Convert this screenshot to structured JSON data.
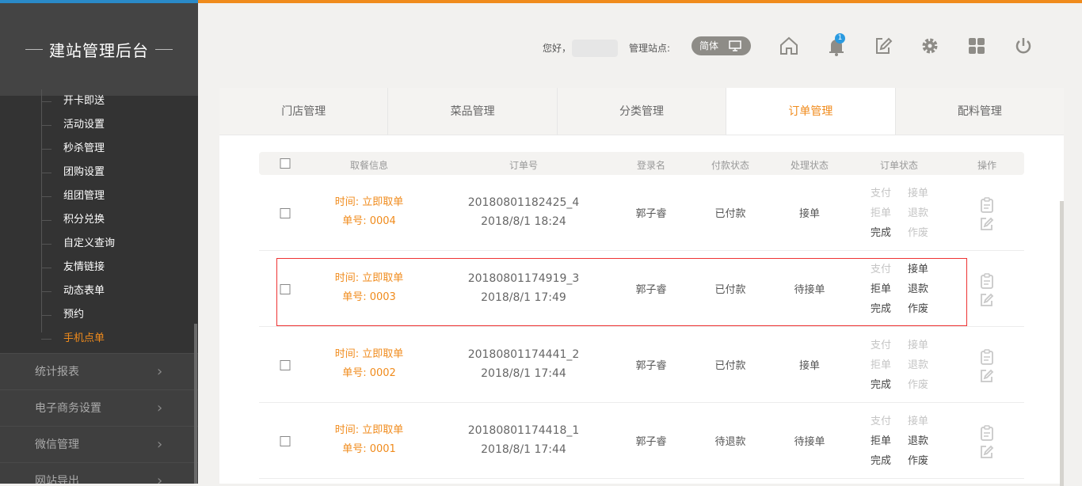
{
  "brand": {
    "title": "建站管理后台"
  },
  "sidebar": {
    "sub_items": [
      {
        "label": "开卡即送"
      },
      {
        "label": "活动设置"
      },
      {
        "label": "秒杀管理"
      },
      {
        "label": "团购设置"
      },
      {
        "label": "组团管理"
      },
      {
        "label": "积分兑换"
      },
      {
        "label": "自定义查询"
      },
      {
        "label": "友情链接"
      },
      {
        "label": "动态表单"
      },
      {
        "label": "预约"
      },
      {
        "label": "手机点单",
        "active": true
      }
    ],
    "menus": [
      {
        "label": "统计报表"
      },
      {
        "label": "电子商务设置"
      },
      {
        "label": "微信管理"
      },
      {
        "label": "网站导出"
      }
    ]
  },
  "header": {
    "greeting": "您好，",
    "site_label": "管理站点:",
    "lang": "简体",
    "notification_count": "1",
    "icons": [
      "home-icon",
      "bell-icon",
      "edit-icon",
      "gear-icon",
      "grid-icon",
      "power-icon"
    ]
  },
  "tabs": [
    {
      "label": "门店管理"
    },
    {
      "label": "菜品管理"
    },
    {
      "label": "分类管理"
    },
    {
      "label": "订单管理",
      "active": true
    },
    {
      "label": "配料管理"
    }
  ],
  "table": {
    "headers": {
      "info": "取餐信息",
      "order_no": "订单号",
      "login": "登录名",
      "pay": "付款状态",
      "process": "处理状态",
      "status": "订单状态",
      "ops": "操作"
    },
    "rows": [
      {
        "time": "时间: 立即取单",
        "num": "单号: 0004",
        "order_no": "20180801182425_4",
        "date": "2018/8/1 18:24",
        "login": "郭子睿",
        "pay": "已付款",
        "process": "接单",
        "actions": [
          {
            "label": "支付",
            "enabled": false
          },
          {
            "label": "接单",
            "enabled": false
          },
          {
            "label": "拒单",
            "enabled": false
          },
          {
            "label": "退款",
            "enabled": false
          },
          {
            "label": "完成",
            "enabled": true
          },
          {
            "label": "作废",
            "enabled": false
          }
        ]
      },
      {
        "time": "时间: 立即取单",
        "num": "单号: 0003",
        "order_no": "20180801174919_3",
        "date": "2018/8/1 17:49",
        "login": "郭子睿",
        "pay": "已付款",
        "process": "待接单",
        "highlighted": true,
        "actions": [
          {
            "label": "支付",
            "enabled": false
          },
          {
            "label": "接单",
            "enabled": true
          },
          {
            "label": "拒单",
            "enabled": true
          },
          {
            "label": "退款",
            "enabled": true
          },
          {
            "label": "完成",
            "enabled": true
          },
          {
            "label": "作废",
            "enabled": true
          }
        ]
      },
      {
        "time": "时间: 立即取单",
        "num": "单号: 0002",
        "order_no": "20180801174441_2",
        "date": "2018/8/1 17:44",
        "login": "郭子睿",
        "pay": "已付款",
        "process": "接单",
        "actions": [
          {
            "label": "支付",
            "enabled": false
          },
          {
            "label": "接单",
            "enabled": false
          },
          {
            "label": "拒单",
            "enabled": false
          },
          {
            "label": "退款",
            "enabled": false
          },
          {
            "label": "完成",
            "enabled": true
          },
          {
            "label": "作废",
            "enabled": false
          }
        ]
      },
      {
        "time": "时间: 立即取单",
        "num": "单号: 0001",
        "order_no": "20180801174418_1",
        "date": "2018/8/1 17:44",
        "login": "郭子睿",
        "pay": "待退款",
        "process": "待接单",
        "actions": [
          {
            "label": "支付",
            "enabled": false
          },
          {
            "label": "接单",
            "enabled": false
          },
          {
            "label": "拒单",
            "enabled": true
          },
          {
            "label": "退款",
            "enabled": true
          },
          {
            "label": "完成",
            "enabled": true
          },
          {
            "label": "作废",
            "enabled": true
          }
        ]
      }
    ]
  },
  "colors": {
    "accent": "#f08b1c",
    "sidebar": "#333333",
    "highlight": "#ee3333"
  }
}
